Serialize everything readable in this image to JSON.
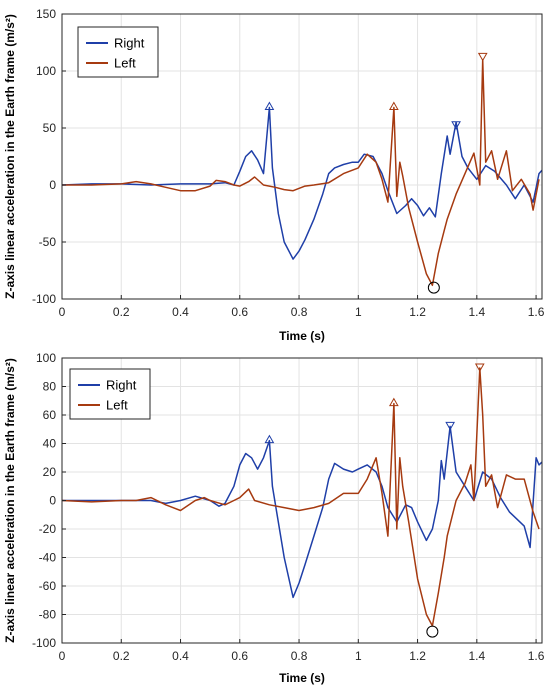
{
  "chart_data": [
    {
      "type": "line",
      "xlabel": "Time (s)",
      "ylabel": "Z-axis linear acceleration in the Earth frame (m/s²)",
      "xlim": [
        0,
        1.62
      ],
      "ylim": [
        -100,
        150
      ],
      "xticks": [
        0,
        0.2,
        0.4,
        0.6,
        0.8,
        1,
        1.2,
        1.4,
        1.6
      ],
      "yticks": [
        -100,
        -50,
        0,
        50,
        100,
        150
      ],
      "xtick_labels": [
        "0",
        "0.2",
        "0.4",
        "0.6",
        "0.8",
        "1",
        "1.2",
        "1.4",
        "1.6"
      ],
      "ytick_labels": [
        "-100",
        "-50",
        "0",
        "50",
        "100",
        "150"
      ],
      "grid": true,
      "legend_position": "top-left",
      "series": [
        {
          "name": "Right",
          "color": "#1f3fa8",
          "points": [
            [
              0,
              0
            ],
            [
              0.1,
              1
            ],
            [
              0.2,
              1
            ],
            [
              0.3,
              0
            ],
            [
              0.4,
              1
            ],
            [
              0.5,
              1
            ],
            [
              0.55,
              2
            ],
            [
              0.58,
              0
            ],
            [
              0.6,
              12
            ],
            [
              0.62,
              25
            ],
            [
              0.64,
              30
            ],
            [
              0.66,
              22
            ],
            [
              0.68,
              10
            ],
            [
              0.7,
              68
            ],
            [
              0.71,
              15
            ],
            [
              0.73,
              -25
            ],
            [
              0.75,
              -50
            ],
            [
              0.78,
              -65
            ],
            [
              0.8,
              -58
            ],
            [
              0.82,
              -48
            ],
            [
              0.85,
              -30
            ],
            [
              0.88,
              -8
            ],
            [
              0.9,
              10
            ],
            [
              0.92,
              15
            ],
            [
              0.95,
              18
            ],
            [
              0.98,
              20
            ],
            [
              1.0,
              20
            ],
            [
              1.02,
              27
            ],
            [
              1.05,
              25
            ],
            [
              1.08,
              10
            ],
            [
              1.1,
              -5
            ],
            [
              1.13,
              -25
            ],
            [
              1.16,
              -18
            ],
            [
              1.18,
              -12
            ],
            [
              1.2,
              -18
            ],
            [
              1.22,
              -27
            ],
            [
              1.24,
              -20
            ],
            [
              1.26,
              -28
            ],
            [
              1.28,
              10
            ],
            [
              1.3,
              43
            ],
            [
              1.31,
              27
            ],
            [
              1.33,
              55
            ],
            [
              1.35,
              25
            ],
            [
              1.37,
              15
            ],
            [
              1.4,
              5
            ],
            [
              1.43,
              17
            ],
            [
              1.46,
              12
            ],
            [
              1.5,
              0
            ],
            [
              1.53,
              -12
            ],
            [
              1.56,
              0
            ],
            [
              1.59,
              -15
            ],
            [
              1.61,
              10
            ],
            [
              1.62,
              13
            ]
          ],
          "markers": [
            {
              "x": 0.7,
              "y": 68,
              "shape": "triangle-up"
            },
            {
              "x": 1.33,
              "y": 52,
              "shape": "triangle-down"
            }
          ]
        },
        {
          "name": "Left",
          "color": "#a63a10",
          "points": [
            [
              0,
              0
            ],
            [
              0.1,
              0
            ],
            [
              0.2,
              1
            ],
            [
              0.25,
              3
            ],
            [
              0.3,
              1
            ],
            [
              0.35,
              -2
            ],
            [
              0.4,
              -5
            ],
            [
              0.45,
              -5
            ],
            [
              0.5,
              -1
            ],
            [
              0.52,
              4
            ],
            [
              0.55,
              3
            ],
            [
              0.58,
              0
            ],
            [
              0.6,
              -1
            ],
            [
              0.63,
              3
            ],
            [
              0.65,
              7
            ],
            [
              0.68,
              0
            ],
            [
              0.72,
              -2
            ],
            [
              0.75,
              -4
            ],
            [
              0.78,
              -5
            ],
            [
              0.82,
              -1
            ],
            [
              0.85,
              0
            ],
            [
              0.9,
              2
            ],
            [
              0.95,
              10
            ],
            [
              1.0,
              15
            ],
            [
              1.03,
              27
            ],
            [
              1.06,
              20
            ],
            [
              1.08,
              5
            ],
            [
              1.1,
              -15
            ],
            [
              1.12,
              68
            ],
            [
              1.13,
              -10
            ],
            [
              1.14,
              20
            ],
            [
              1.15,
              8
            ],
            [
              1.17,
              -20
            ],
            [
              1.2,
              -50
            ],
            [
              1.23,
              -78
            ],
            [
              1.25,
              -88
            ],
            [
              1.27,
              -60
            ],
            [
              1.29,
              -40
            ],
            [
              1.3,
              -30
            ],
            [
              1.33,
              -8
            ],
            [
              1.36,
              10
            ],
            [
              1.39,
              28
            ],
            [
              1.41,
              0
            ],
            [
              1.42,
              110
            ],
            [
              1.43,
              20
            ],
            [
              1.45,
              30
            ],
            [
              1.47,
              5
            ],
            [
              1.5,
              30
            ],
            [
              1.52,
              -5
            ],
            [
              1.55,
              5
            ],
            [
              1.58,
              -8
            ],
            [
              1.59,
              -22
            ],
            [
              1.61,
              5
            ]
          ],
          "markers": [
            {
              "x": 1.12,
              "y": 68,
              "shape": "triangle-up"
            },
            {
              "x": 1.42,
              "y": 112,
              "shape": "triangle-down"
            },
            {
              "x": 1.255,
              "y": -90,
              "shape": "circle"
            }
          ]
        }
      ]
    },
    {
      "type": "line",
      "xlabel": "Time (s)",
      "ylabel": "Z-axis linear acceleration in the Earth frame (m/s²)",
      "xlim": [
        0,
        1.62
      ],
      "ylim": [
        -100,
        100
      ],
      "xticks": [
        0,
        0.2,
        0.4,
        0.6,
        0.8,
        1,
        1.2,
        1.4,
        1.6
      ],
      "yticks": [
        -100,
        -80,
        -60,
        -40,
        -20,
        0,
        20,
        40,
        60,
        80,
        100
      ],
      "xtick_labels": [
        "0",
        "0.2",
        "0.4",
        "0.6",
        "0.8",
        "1",
        "1.2",
        "1.4",
        "1.6"
      ],
      "ytick_labels": [
        "-100",
        "-80",
        "-60",
        "-40",
        "-20",
        "0",
        "20",
        "40",
        "60",
        "80",
        "100"
      ],
      "grid": true,
      "legend_position": "top-left",
      "series": [
        {
          "name": "Right",
          "color": "#1f3fa8",
          "points": [
            [
              0,
              0
            ],
            [
              0.1,
              0
            ],
            [
              0.2,
              0
            ],
            [
              0.3,
              0
            ],
            [
              0.35,
              -2
            ],
            [
              0.4,
              0
            ],
            [
              0.45,
              3
            ],
            [
              0.5,
              0
            ],
            [
              0.53,
              -4
            ],
            [
              0.55,
              -2
            ],
            [
              0.58,
              10
            ],
            [
              0.6,
              25
            ],
            [
              0.62,
              33
            ],
            [
              0.64,
              30
            ],
            [
              0.66,
              22
            ],
            [
              0.68,
              30
            ],
            [
              0.7,
              42
            ],
            [
              0.71,
              10
            ],
            [
              0.73,
              -15
            ],
            [
              0.75,
              -40
            ],
            [
              0.78,
              -68
            ],
            [
              0.8,
              -58
            ],
            [
              0.82,
              -45
            ],
            [
              0.85,
              -25
            ],
            [
              0.88,
              -5
            ],
            [
              0.9,
              15
            ],
            [
              0.92,
              26
            ],
            [
              0.95,
              22
            ],
            [
              0.98,
              20
            ],
            [
              1.0,
              22
            ],
            [
              1.03,
              25
            ],
            [
              1.06,
              20
            ],
            [
              1.08,
              10
            ],
            [
              1.1,
              -5
            ],
            [
              1.13,
              -15
            ],
            [
              1.16,
              -3
            ],
            [
              1.18,
              -5
            ],
            [
              1.2,
              -15
            ],
            [
              1.23,
              -28
            ],
            [
              1.25,
              -20
            ],
            [
              1.27,
              0
            ],
            [
              1.28,
              28
            ],
            [
              1.29,
              15
            ],
            [
              1.31,
              52
            ],
            [
              1.33,
              20
            ],
            [
              1.36,
              10
            ],
            [
              1.39,
              0
            ],
            [
              1.42,
              20
            ],
            [
              1.45,
              15
            ],
            [
              1.48,
              2
            ],
            [
              1.51,
              -8
            ],
            [
              1.53,
              -12
            ],
            [
              1.56,
              -18
            ],
            [
              1.58,
              -33
            ],
            [
              1.6,
              30
            ],
            [
              1.61,
              25
            ],
            [
              1.62,
              27
            ]
          ],
          "markers": [
            {
              "x": 0.7,
              "y": 42,
              "shape": "triangle-up"
            },
            {
              "x": 1.31,
              "y": 52,
              "shape": "triangle-down"
            }
          ]
        },
        {
          "name": "Left",
          "color": "#a63a10",
          "points": [
            [
              0,
              0
            ],
            [
              0.1,
              -1
            ],
            [
              0.2,
              0
            ],
            [
              0.25,
              0
            ],
            [
              0.3,
              2
            ],
            [
              0.35,
              -3
            ],
            [
              0.4,
              -7
            ],
            [
              0.45,
              0
            ],
            [
              0.48,
              2
            ],
            [
              0.5,
              0
            ],
            [
              0.55,
              -3
            ],
            [
              0.58,
              0
            ],
            [
              0.6,
              2
            ],
            [
              0.63,
              8
            ],
            [
              0.65,
              0
            ],
            [
              0.7,
              -3
            ],
            [
              0.75,
              -5
            ],
            [
              0.8,
              -7
            ],
            [
              0.85,
              -5
            ],
            [
              0.9,
              -2
            ],
            [
              0.95,
              5
            ],
            [
              1.0,
              5
            ],
            [
              1.03,
              15
            ],
            [
              1.06,
              30
            ],
            [
              1.08,
              5
            ],
            [
              1.1,
              -25
            ],
            [
              1.12,
              68
            ],
            [
              1.13,
              -20
            ],
            [
              1.14,
              30
            ],
            [
              1.15,
              10
            ],
            [
              1.17,
              -15
            ],
            [
              1.2,
              -55
            ],
            [
              1.23,
              -80
            ],
            [
              1.25,
              -88
            ],
            [
              1.27,
              -65
            ],
            [
              1.29,
              -40
            ],
            [
              1.3,
              -25
            ],
            [
              1.33,
              0
            ],
            [
              1.36,
              12
            ],
            [
              1.38,
              25
            ],
            [
              1.39,
              0
            ],
            [
              1.41,
              93
            ],
            [
              1.42,
              60
            ],
            [
              1.43,
              10
            ],
            [
              1.45,
              18
            ],
            [
              1.47,
              -5
            ],
            [
              1.5,
              18
            ],
            [
              1.53,
              15
            ],
            [
              1.56,
              15
            ],
            [
              1.59,
              -8
            ],
            [
              1.61,
              -20
            ]
          ],
          "markers": [
            {
              "x": 1.12,
              "y": 68,
              "shape": "triangle-up"
            },
            {
              "x": 1.41,
              "y": 93,
              "shape": "triangle-down"
            },
            {
              "x": 1.25,
              "y": -92,
              "shape": "circle"
            }
          ]
        }
      ]
    }
  ]
}
